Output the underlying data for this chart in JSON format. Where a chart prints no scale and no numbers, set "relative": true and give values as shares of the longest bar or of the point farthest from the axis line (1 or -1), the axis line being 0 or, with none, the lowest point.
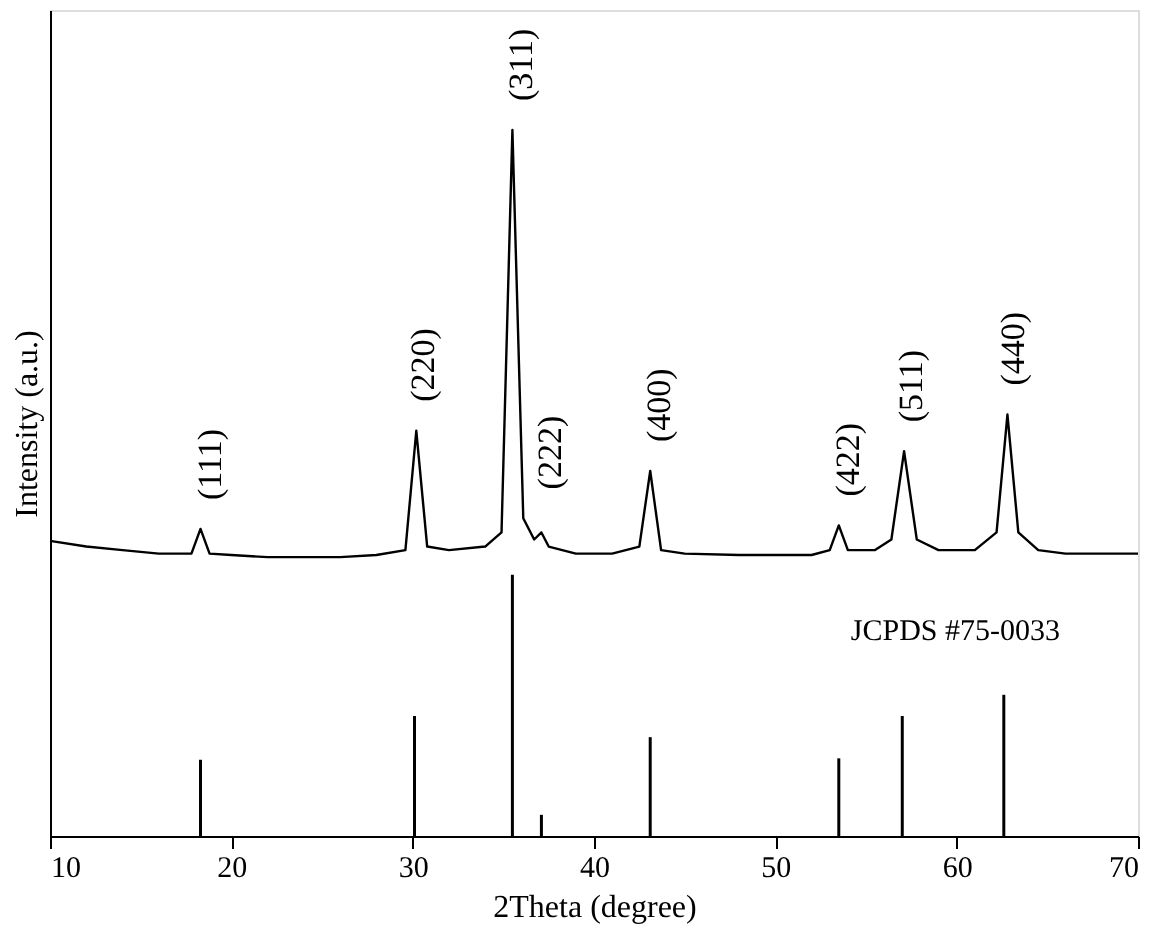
{
  "chart_data": {
    "type": "line",
    "xlabel": "2Theta (degree)",
    "ylabel": "Intensity (a.u.)",
    "relative": true,
    "xlim": [
      10,
      70
    ],
    "xticks": [
      10,
      20,
      30,
      40,
      50,
      60,
      70
    ],
    "grid": false,
    "tick_labels": "x",
    "series": [
      {
        "color": "#000000",
        "x": [
          10,
          12,
          14,
          16,
          17.8,
          18.3,
          18.8,
          20,
          22,
          24,
          26,
          28,
          29.6,
          30.2,
          30.8,
          32,
          34,
          34.9,
          35.5,
          36.1,
          36.7,
          37.1,
          37.5,
          39,
          41,
          42.5,
          43.1,
          43.7,
          45,
          48,
          50,
          52,
          53,
          53.5,
          54,
          55.5,
          56.4,
          57.1,
          57.8,
          59,
          61,
          62.2,
          62.8,
          63.4,
          64.5,
          66,
          68,
          70
        ],
        "values": [
          0.418,
          0.41,
          0.405,
          0.4,
          0.4,
          0.435,
          0.4,
          0.398,
          0.395,
          0.395,
          0.395,
          0.398,
          0.405,
          0.574,
          0.41,
          0.405,
          0.41,
          0.43,
          1.0,
          0.45,
          0.42,
          0.43,
          0.41,
          0.4,
          0.4,
          0.41,
          0.517,
          0.405,
          0.4,
          0.398,
          0.398,
          0.398,
          0.405,
          0.44,
          0.405,
          0.405,
          0.42,
          0.545,
          0.42,
          0.405,
          0.405,
          0.43,
          0.597,
          0.43,
          0.405,
          0.4,
          0.4,
          0.4
        ]
      },
      {
        "type": "bar",
        "color": "#000000",
        "x": [
          18.3,
          30.1,
          35.5,
          37.1,
          43.1,
          53.5,
          57.0,
          62.6
        ],
        "values": [
          0.108,
          0.17,
          0.37,
          0.03,
          0.14,
          0.11,
          0.17,
          0.2
        ]
      }
    ],
    "annotations": [
      "(111)",
      "(220)",
      "(311)",
      "(222)",
      "(400)",
      "(422)",
      "(511)",
      "(440)",
      "JCPDS #75-0033"
    ]
  }
}
